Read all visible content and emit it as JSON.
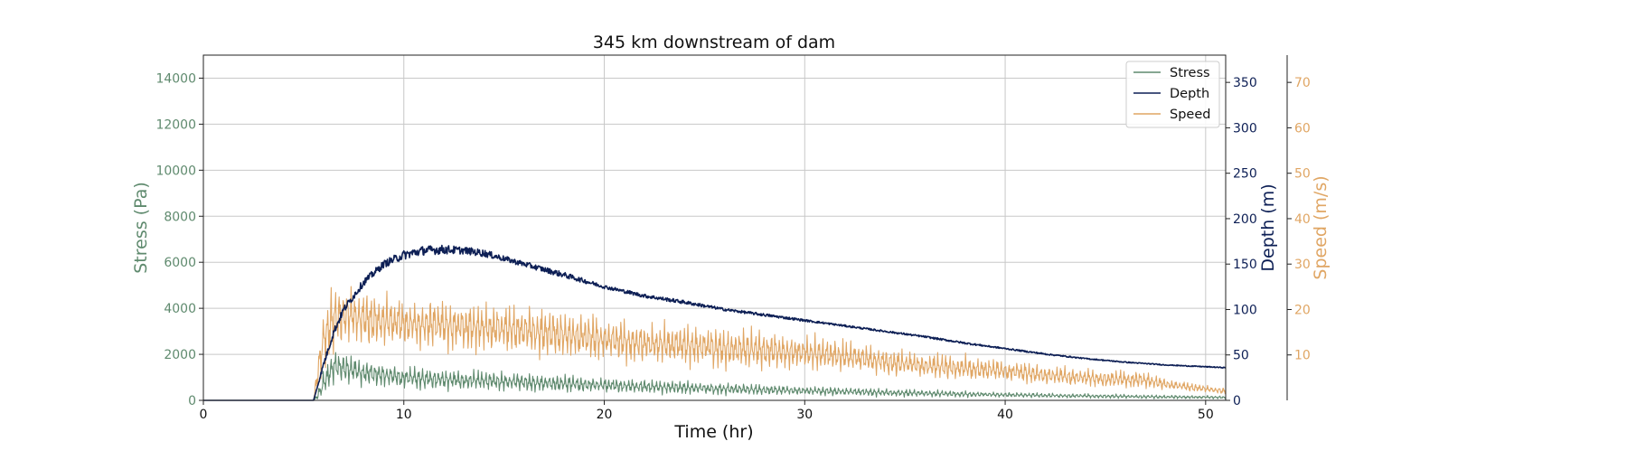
{
  "chart_data": {
    "type": "line",
    "title": "345 km downstream of dam",
    "xlabel": "Time (hr)",
    "xlim": [
      0,
      51
    ],
    "xticks": [
      0,
      10,
      20,
      30,
      40,
      50
    ],
    "grid": true,
    "legend_position": "top-right",
    "axes": {
      "stress": {
        "label": "Stress (Pa)",
        "ylim": [
          0,
          15000
        ],
        "ticks": [
          0,
          2000,
          4000,
          6000,
          8000,
          10000,
          12000,
          14000
        ],
        "color": "#5f8a6e"
      },
      "depth": {
        "label": "Depth (m)",
        "ylim": [
          0,
          380
        ],
        "ticks": [
          0,
          50,
          100,
          150,
          200,
          250,
          300,
          350
        ],
        "color": "#0d1f55"
      },
      "speed": {
        "label": "Speed (m/s)",
        "ylim": [
          0,
          76
        ],
        "ticks": [
          10,
          20,
          30,
          40,
          50,
          60,
          70
        ],
        "color": "#e0a664"
      }
    },
    "series": [
      {
        "name": "Stress",
        "axis": "stress",
        "color": "#5f8a6e",
        "x": [
          0,
          5.5,
          5.7,
          6,
          6.5,
          7,
          8,
          9,
          10,
          12,
          14,
          16,
          18,
          20,
          22,
          24,
          26,
          28,
          30,
          32,
          34,
          36,
          38,
          40,
          42,
          44,
          46,
          48,
          50,
          51
        ],
        "values": [
          0,
          0,
          200,
          700,
          1500,
          1400,
          1200,
          1100,
          1000,
          900,
          850,
          780,
          720,
          650,
          600,
          550,
          500,
          450,
          420,
          380,
          340,
          300,
          270,
          240,
          210,
          190,
          170,
          150,
          140,
          130
        ],
        "noise": [
          0,
          0,
          300,
          700,
          900,
          800,
          700,
          650,
          600,
          550,
          520,
          480,
          440,
          400,
          370,
          340,
          310,
          280,
          260,
          240,
          210,
          190,
          170,
          150,
          130,
          120,
          110,
          100,
          90,
          80
        ]
      },
      {
        "name": "Depth",
        "axis": "depth",
        "color": "#0d1f55",
        "x": [
          0,
          5.5,
          6,
          6.5,
          7,
          8,
          9,
          10,
          11,
          12,
          13,
          14,
          15,
          16,
          18,
          20,
          22,
          24,
          26,
          28,
          30,
          32,
          34,
          36,
          38,
          40,
          42,
          44,
          46,
          48,
          50,
          51
        ],
        "values": [
          0,
          0,
          40,
          75,
          100,
          130,
          150,
          160,
          165,
          166,
          165,
          162,
          156,
          150,
          138,
          125,
          115,
          108,
          100,
          94,
          88,
          82,
          76,
          70,
          63,
          57,
          51,
          46,
          42,
          39,
          37,
          36
        ],
        "noise": [
          0,
          0,
          3,
          4,
          4,
          4,
          4,
          5,
          5,
          5,
          4,
          4,
          3,
          3,
          3,
          2,
          2,
          2,
          1.5,
          1.5,
          1.2,
          1,
          1,
          1,
          1,
          0.8,
          0.8,
          0.6,
          0.6,
          0.5,
          0.5,
          0.5
        ]
      },
      {
        "name": "Speed",
        "axis": "speed",
        "color": "#e0a664",
        "x": [
          0,
          5.5,
          5.7,
          6,
          6.5,
          7,
          8,
          9,
          10,
          12,
          14,
          16,
          18,
          20,
          22,
          24,
          26,
          28,
          30,
          32,
          34,
          36,
          38,
          40,
          42,
          44,
          46,
          47,
          48,
          50,
          51
        ],
        "values": [
          0,
          0,
          6,
          14,
          18,
          19,
          18,
          17.5,
          17,
          16.5,
          16,
          15.5,
          14.5,
          13.5,
          12.5,
          12,
          11.5,
          11,
          10.5,
          9.5,
          8.5,
          7.5,
          7,
          6.5,
          5.5,
          5,
          4.5,
          4.5,
          3.5,
          2.5,
          2
        ],
        "noise": [
          0,
          0,
          5,
          8,
          9,
          8,
          7.5,
          7.5,
          7,
          7,
          7,
          6.5,
          6.5,
          6,
          6,
          6,
          5.5,
          5.5,
          5,
          4.5,
          4,
          3.5,
          3.5,
          3,
          3,
          2.5,
          2.5,
          2.5,
          1.5,
          1.2,
          1
        ]
      }
    ]
  }
}
